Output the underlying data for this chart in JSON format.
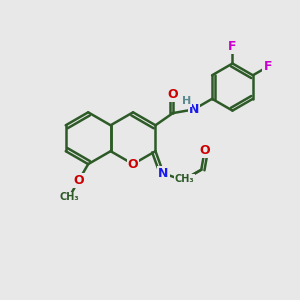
{
  "bg": "#e8e8e8",
  "bond_color": "#2d5a27",
  "bond_width": 1.8,
  "atom_colors": {
    "O": "#cc0000",
    "N": "#1a1aee",
    "F": "#cc00cc",
    "H": "#5a8a90",
    "C": "#2d5a27"
  },
  "font_size": 9,
  "fig_w": 3.0,
  "fig_h": 3.0,
  "dpi": 100
}
